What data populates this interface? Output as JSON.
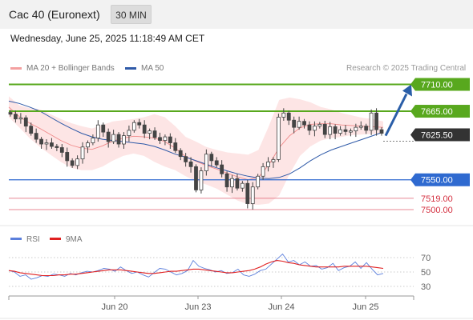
{
  "header": {
    "title": "Cac 40 (Euronext)",
    "timeframe": "30 MIN"
  },
  "datetime": "Wednesday, June 25, 2025 11:18:49 AM CET",
  "legend": {
    "ma20": {
      "label": "MA 20 + Bollinger Bands",
      "color": "#f4a0a0"
    },
    "ma50": {
      "label": "MA 50",
      "color": "#2f5aa8"
    }
  },
  "credit": "Research © 2025 Trading Central",
  "rsi_legend": {
    "rsi": {
      "label": "RSI",
      "color": "#5b7fdc"
    },
    "ma9": {
      "label": "9MA",
      "color": "#e02020"
    }
  },
  "colors": {
    "green_line": "#58a81e",
    "blue_line": "#2f6ad0",
    "red_line": "#e06070",
    "price_tag": "#333333",
    "arrow": "#2a5ea8",
    "band_fill": "#fde0e0",
    "candle": "#444444"
  },
  "chart_data": [
    {
      "type": "candlestick",
      "title": "Cac 40 (Euronext)",
      "interval": "30 MIN",
      "x_ticks": [
        "Jun 20",
        "Jun 23",
        "Jun 24",
        "Jun 25"
      ],
      "ylim": [
        7485,
        7730
      ],
      "levels": [
        {
          "value": 7710.0,
          "label": "7710.00",
          "style": "green-tag"
        },
        {
          "value": 7665.0,
          "label": "7665.00",
          "style": "green-tag"
        },
        {
          "value": 7625.5,
          "label": "7625.50",
          "style": "current-price"
        },
        {
          "value": 7550.0,
          "label": "7550.00",
          "style": "blue-tag"
        },
        {
          "value": 7519.0,
          "label": "7519.00",
          "style": "red-text"
        },
        {
          "value": 7500.0,
          "label": "7500.00",
          "style": "red-text"
        }
      ],
      "forecast_arrow": {
        "from": 7628,
        "to": 7710
      },
      "price_path": [
        7660,
        7652,
        7654,
        7640,
        7628,
        7618,
        7610,
        7612,
        7606,
        7604,
        7596,
        7582,
        7574,
        7585,
        7605,
        7612,
        7620,
        7642,
        7630,
        7614,
        7626,
        7610,
        7624,
        7633,
        7646,
        7642,
        7628,
        7632,
        7621,
        7616,
        7622,
        7612,
        7599,
        7589,
        7580,
        7572,
        7533,
        7565,
        7593,
        7582,
        7575,
        7560,
        7538,
        7552,
        7536,
        7544,
        7510,
        7538,
        7556,
        7572,
        7580,
        7584,
        7655,
        7662,
        7650,
        7638,
        7648,
        7642,
        7633,
        7640,
        7643,
        7626,
        7639,
        7628,
        7634,
        7631,
        7632,
        7638,
        7640,
        7633,
        7662,
        7634,
        7628
      ],
      "bollinger_upper": [
        7690,
        7675,
        7670,
        7668,
        7660,
        7652,
        7645,
        7640,
        7636,
        7642,
        7648,
        7650,
        7652,
        7655,
        7660,
        7655,
        7640,
        7622,
        7614,
        7605,
        7600,
        7596,
        7594,
        7592,
        7600,
        7640,
        7684,
        7688,
        7685,
        7680,
        7672,
        7668,
        7662,
        7658,
        7654,
        7652,
        7648
      ],
      "bollinger_lower": [
        7655,
        7638,
        7620,
        7605,
        7592,
        7580,
        7570,
        7566,
        7566,
        7572,
        7582,
        7590,
        7594,
        7590,
        7580,
        7572,
        7566,
        7556,
        7548,
        7542,
        7535,
        7525,
        7515,
        7509,
        7508,
        7510,
        7524,
        7560,
        7590,
        7606,
        7616,
        7620,
        7622,
        7625,
        7626,
        7627,
        7628
      ],
      "ma20": [
        7672,
        7656,
        7645,
        7636,
        7626,
        7616,
        7608,
        7603,
        7601,
        7607,
        7615,
        7620,
        7623,
        7622,
        7620,
        7614,
        7603,
        7589,
        7581,
        7574,
        7568,
        7561,
        7555,
        7550,
        7554,
        7575,
        7604,
        7624,
        7637,
        7643,
        7644,
        7644,
        7642,
        7641,
        7640,
        7639,
        7638
      ],
      "ma50": [
        7682,
        7678,
        7672,
        7665,
        7655,
        7645,
        7636,
        7628,
        7622,
        7618,
        7616,
        7614,
        7612,
        7610,
        7606,
        7600,
        7593,
        7588,
        7582,
        7576,
        7570,
        7565,
        7560,
        7556,
        7553,
        7552,
        7554,
        7560,
        7570,
        7582,
        7592,
        7600,
        7606,
        7612,
        7618,
        7624,
        7630
      ]
    },
    {
      "type": "line",
      "title": "RSI",
      "ylim": [
        20,
        80
      ],
      "y_ticks": [
        "70",
        "50",
        "30"
      ],
      "series": [
        {
          "name": "RSI",
          "values": [
            52,
            50,
            44,
            46,
            40,
            42,
            45,
            44,
            47,
            46,
            44,
            48,
            46,
            49,
            51,
            50,
            52,
            55,
            54,
            51,
            57,
            52,
            48,
            50,
            46,
            43,
            49,
            55,
            54,
            50,
            46,
            48,
            52,
            66,
            58,
            55,
            53,
            50,
            52,
            48,
            49,
            54,
            46,
            44,
            47,
            52,
            54,
            61,
            68,
            75,
            64,
            66,
            60,
            64,
            58,
            59,
            54,
            56,
            62,
            52,
            56,
            58,
            64,
            55,
            63,
            54,
            46,
            48
          ]
        },
        {
          "name": "9MA",
          "values": [
            52,
            51,
            49,
            48,
            47,
            46,
            45,
            45,
            45,
            46,
            46,
            47,
            47,
            48,
            49,
            50,
            51,
            52,
            53,
            53,
            53,
            52,
            51,
            50,
            49,
            48,
            48,
            49,
            50,
            51,
            51,
            52,
            53,
            54,
            54,
            53,
            52,
            51,
            50,
            49,
            49,
            50,
            51,
            52,
            54,
            57,
            61,
            64,
            66,
            65,
            63,
            62,
            60,
            59,
            58,
            57,
            57,
            57,
            57,
            57,
            58,
            58,
            58,
            58,
            58,
            57,
            56,
            55
          ]
        }
      ]
    }
  ]
}
